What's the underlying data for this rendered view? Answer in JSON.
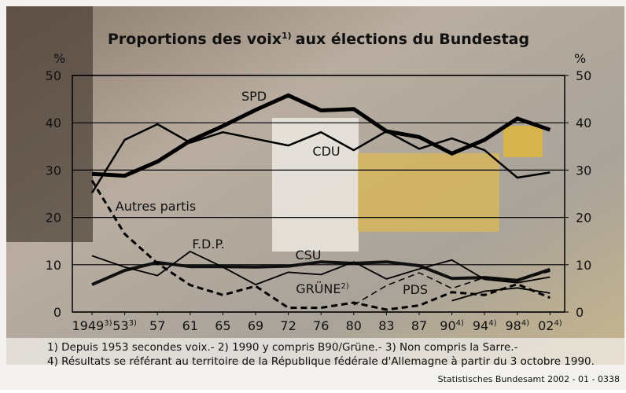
{
  "chart_data": {
    "type": "line",
    "title_parts": [
      "Proportions des voix",
      "1)",
      "aux élections du Bundestag"
    ],
    "y_unit": "%",
    "categories": [
      "1949",
      "53",
      "57",
      "61",
      "65",
      "69",
      "72",
      "76",
      "80",
      "83",
      "87",
      "90",
      "94",
      "98",
      "02"
    ],
    "category_notes": [
      "3)",
      "3)",
      null,
      null,
      null,
      null,
      null,
      null,
      null,
      null,
      null,
      "4)",
      "4)",
      "4)",
      "4)"
    ],
    "ylim": [
      0,
      50
    ],
    "yticks": [
      0,
      10,
      20,
      30,
      40,
      50
    ],
    "y2lim": [
      0,
      50
    ],
    "y2ticks": [
      0,
      10,
      20,
      30,
      40,
      50
    ],
    "grid": true,
    "series": [
      {
        "name": "SPD",
        "color": "#000000",
        "width": 5,
        "dashed": false,
        "values": [
          29.2,
          28.8,
          31.8,
          36.2,
          39.3,
          42.7,
          45.8,
          42.6,
          42.9,
          38.2,
          37.0,
          33.5,
          36.4,
          40.9,
          38.5
        ]
      },
      {
        "name": "CDU",
        "color": "#000000",
        "width": 2.5,
        "dashed": false,
        "values": [
          25.2,
          36.4,
          39.7,
          35.8,
          38.0,
          36.6,
          35.2,
          38.0,
          34.2,
          38.2,
          34.5,
          36.7,
          34.2,
          28.4,
          29.5
        ]
      },
      {
        "name": "CSU",
        "color": "#111111",
        "width": 4,
        "dashed": false,
        "values": [
          5.8,
          8.8,
          10.5,
          9.6,
          9.6,
          9.5,
          9.7,
          10.6,
          10.3,
          10.6,
          9.8,
          7.1,
          7.3,
          6.7,
          9.0
        ]
      },
      {
        "name": "F.D.P.",
        "color": "#000000",
        "width": 1.8,
        "dashed": false,
        "values": [
          11.9,
          9.5,
          7.7,
          12.8,
          9.5,
          5.8,
          8.4,
          7.9,
          10.6,
          7.0,
          9.1,
          11.0,
          6.9,
          6.2,
          7.4
        ]
      },
      {
        "name": "GRÜNE",
        "note": "2)",
        "color": "#000000",
        "width": 1.5,
        "dashed": true,
        "values": [
          null,
          null,
          null,
          null,
          null,
          null,
          null,
          null,
          1.5,
          5.6,
          8.3,
          5.0,
          7.3,
          6.7,
          8.6
        ]
      },
      {
        "name": "PDS",
        "color": "#000000",
        "width": 1.8,
        "dashed": false,
        "values": [
          null,
          null,
          null,
          null,
          null,
          null,
          null,
          null,
          null,
          null,
          null,
          2.4,
          4.4,
          5.1,
          4.0
        ]
      },
      {
        "name": "Autres partis",
        "color": "#000000",
        "width": 3,
        "dashed": true,
        "values": [
          27.8,
          16.5,
          10.3,
          5.7,
          3.6,
          5.5,
          0.9,
          0.9,
          2.0,
          0.5,
          1.4,
          4.2,
          3.6,
          5.9,
          3.0
        ]
      }
    ],
    "footnotes": [
      "1) Depuis 1953 secondes voix.- 2) 1990 y compris B90/Grüne.- 3) Non compris la Sarre.-",
      "4) Résultats se référant au territoire de la  République fédérale d'Allemagne à partir du  3 octobre 1990."
    ],
    "source": "Statistisches Bundesamt 2002 - 01 - 0338"
  }
}
